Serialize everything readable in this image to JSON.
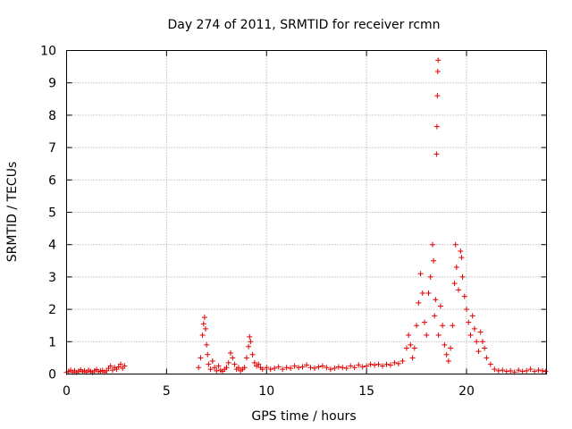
{
  "chart_data": {
    "type": "scatter",
    "title": "Day 274 of 2011, SRMTID for receiver rcmn",
    "xlabel": "GPS time / hours",
    "ylabel": "SRMTID / TECUs",
    "xlim": [
      0,
      24
    ],
    "ylim": [
      0,
      10
    ],
    "xticks": [
      0,
      5,
      10,
      15,
      20
    ],
    "yticks": [
      0,
      1,
      2,
      3,
      4,
      5,
      6,
      7,
      8,
      9,
      10
    ],
    "grid": true,
    "marker": "plus",
    "series": [
      {
        "name": "rcmn",
        "color": "#e00000",
        "points": [
          [
            0.0,
            0.05
          ],
          [
            0.1,
            0.08
          ],
          [
            0.2,
            0.12
          ],
          [
            0.3,
            0.06
          ],
          [
            0.4,
            0.1
          ],
          [
            0.5,
            0.05
          ],
          [
            0.6,
            0.09
          ],
          [
            0.7,
            0.13
          ],
          [
            0.8,
            0.07
          ],
          [
            0.9,
            0.1
          ],
          [
            1.0,
            0.06
          ],
          [
            1.1,
            0.12
          ],
          [
            1.2,
            0.08
          ],
          [
            1.3,
            0.05
          ],
          [
            1.4,
            0.1
          ],
          [
            1.5,
            0.14
          ],
          [
            1.6,
            0.07
          ],
          [
            1.7,
            0.09
          ],
          [
            1.8,
            0.11
          ],
          [
            1.9,
            0.06
          ],
          [
            2.0,
            0.1
          ],
          [
            2.1,
            0.18
          ],
          [
            2.2,
            0.25
          ],
          [
            2.3,
            0.12
          ],
          [
            2.4,
            0.2
          ],
          [
            2.5,
            0.15
          ],
          [
            2.6,
            0.22
          ],
          [
            2.7,
            0.3
          ],
          [
            2.8,
            0.18
          ],
          [
            2.9,
            0.25
          ],
          [
            6.6,
            0.2
          ],
          [
            6.7,
            0.5
          ],
          [
            6.8,
            1.2
          ],
          [
            6.85,
            1.55
          ],
          [
            6.9,
            1.75
          ],
          [
            6.95,
            1.4
          ],
          [
            7.0,
            0.9
          ],
          [
            7.05,
            0.6
          ],
          [
            7.1,
            0.3
          ],
          [
            7.2,
            0.15
          ],
          [
            7.3,
            0.4
          ],
          [
            7.4,
            0.2
          ],
          [
            7.5,
            0.1
          ],
          [
            7.6,
            0.25
          ],
          [
            7.7,
            0.12
          ],
          [
            7.8,
            0.08
          ],
          [
            7.9,
            0.15
          ],
          [
            8.0,
            0.2
          ],
          [
            8.1,
            0.35
          ],
          [
            8.2,
            0.65
          ],
          [
            8.3,
            0.5
          ],
          [
            8.4,
            0.3
          ],
          [
            8.5,
            0.15
          ],
          [
            8.6,
            0.2
          ],
          [
            8.7,
            0.1
          ],
          [
            8.8,
            0.15
          ],
          [
            8.9,
            0.2
          ],
          [
            9.0,
            0.5
          ],
          [
            9.1,
            0.85
          ],
          [
            9.15,
            1.15
          ],
          [
            9.2,
            1.0
          ],
          [
            9.3,
            0.6
          ],
          [
            9.4,
            0.35
          ],
          [
            9.5,
            0.25
          ],
          [
            9.6,
            0.3
          ],
          [
            9.7,
            0.2
          ],
          [
            9.8,
            0.15
          ],
          [
            10.0,
            0.2
          ],
          [
            10.2,
            0.15
          ],
          [
            10.4,
            0.18
          ],
          [
            10.6,
            0.22
          ],
          [
            10.8,
            0.15
          ],
          [
            11.0,
            0.2
          ],
          [
            11.2,
            0.18
          ],
          [
            11.4,
            0.25
          ],
          [
            11.6,
            0.2
          ],
          [
            11.8,
            0.22
          ],
          [
            12.0,
            0.28
          ],
          [
            12.2,
            0.2
          ],
          [
            12.4,
            0.18
          ],
          [
            12.6,
            0.22
          ],
          [
            12.8,
            0.25
          ],
          [
            13.0,
            0.2
          ],
          [
            13.2,
            0.15
          ],
          [
            13.4,
            0.18
          ],
          [
            13.6,
            0.22
          ],
          [
            13.8,
            0.2
          ],
          [
            14.0,
            0.18
          ],
          [
            14.2,
            0.25
          ],
          [
            14.4,
            0.2
          ],
          [
            14.6,
            0.28
          ],
          [
            14.8,
            0.22
          ],
          [
            15.0,
            0.25
          ],
          [
            15.2,
            0.3
          ],
          [
            15.4,
            0.28
          ],
          [
            15.6,
            0.3
          ],
          [
            15.8,
            0.25
          ],
          [
            16.0,
            0.3
          ],
          [
            16.2,
            0.28
          ],
          [
            16.4,
            0.35
          ],
          [
            16.6,
            0.32
          ],
          [
            16.8,
            0.4
          ],
          [
            17.0,
            0.8
          ],
          [
            17.1,
            1.2
          ],
          [
            17.2,
            0.9
          ],
          [
            17.3,
            0.5
          ],
          [
            17.4,
            0.8
          ],
          [
            17.5,
            1.5
          ],
          [
            17.6,
            2.2
          ],
          [
            17.7,
            3.1
          ],
          [
            17.8,
            2.5
          ],
          [
            17.9,
            1.6
          ],
          [
            18.0,
            1.2
          ],
          [
            18.1,
            2.5
          ],
          [
            18.2,
            3.0
          ],
          [
            18.3,
            4.0
          ],
          [
            18.35,
            3.5
          ],
          [
            18.4,
            1.8
          ],
          [
            18.45,
            2.3
          ],
          [
            18.5,
            6.8
          ],
          [
            18.52,
            7.65
          ],
          [
            18.54,
            8.6
          ],
          [
            18.56,
            9.35
          ],
          [
            18.58,
            9.7
          ],
          [
            18.6,
            1.2
          ],
          [
            18.7,
            2.1
          ],
          [
            18.8,
            1.5
          ],
          [
            18.9,
            0.9
          ],
          [
            19.0,
            0.6
          ],
          [
            19.1,
            0.4
          ],
          [
            19.2,
            0.8
          ],
          [
            19.3,
            1.5
          ],
          [
            19.4,
            2.8
          ],
          [
            19.45,
            4.0
          ],
          [
            19.5,
            3.3
          ],
          [
            19.6,
            2.6
          ],
          [
            19.7,
            3.8
          ],
          [
            19.75,
            3.6
          ],
          [
            19.8,
            3.0
          ],
          [
            19.9,
            2.4
          ],
          [
            20.0,
            2.0
          ],
          [
            20.1,
            1.6
          ],
          [
            20.2,
            1.2
          ],
          [
            20.3,
            1.8
          ],
          [
            20.4,
            1.4
          ],
          [
            20.5,
            1.0
          ],
          [
            20.6,
            0.7
          ],
          [
            20.7,
            1.3
          ],
          [
            20.8,
            1.0
          ],
          [
            20.9,
            0.8
          ],
          [
            21.0,
            0.5
          ],
          [
            21.2,
            0.3
          ],
          [
            21.4,
            0.15
          ],
          [
            21.6,
            0.1
          ],
          [
            21.8,
            0.12
          ],
          [
            22.0,
            0.08
          ],
          [
            22.2,
            0.1
          ],
          [
            22.4,
            0.06
          ],
          [
            22.6,
            0.12
          ],
          [
            22.8,
            0.08
          ],
          [
            23.0,
            0.1
          ],
          [
            23.2,
            0.15
          ],
          [
            23.4,
            0.08
          ],
          [
            23.6,
            0.12
          ],
          [
            23.8,
            0.1
          ],
          [
            23.95,
            0.08
          ]
        ]
      }
    ]
  }
}
